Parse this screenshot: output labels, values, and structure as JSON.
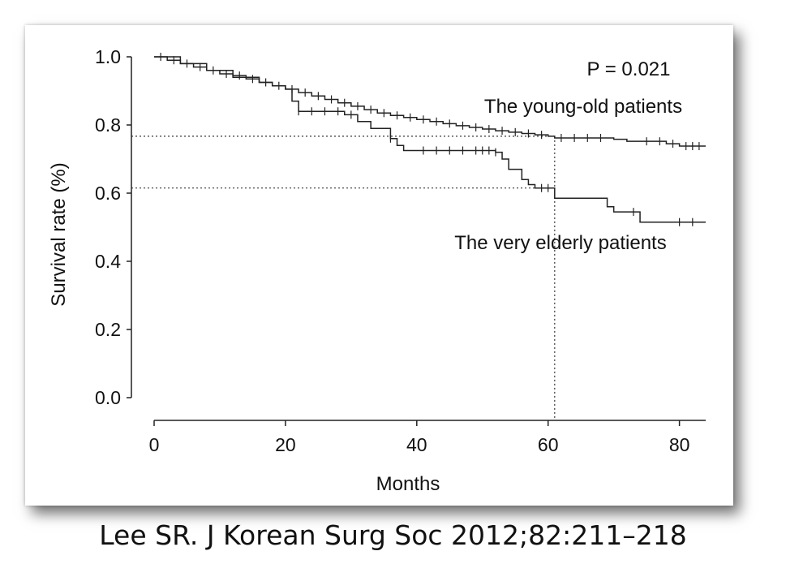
{
  "chart_data": {
    "type": "line",
    "subtype": "kaplan-meier",
    "xlabel": "Months",
    "ylabel": "Survival rate (%)",
    "xlim": [
      0,
      84
    ],
    "ylim": [
      0,
      1.0
    ],
    "x_ticks": [
      0,
      20,
      40,
      60,
      80
    ],
    "x_tick_labels": [
      "0",
      "20",
      "40",
      "60",
      "80"
    ],
    "y_ticks": [
      0.0,
      0.2,
      0.4,
      0.6,
      0.8,
      1.0
    ],
    "y_tick_labels": [
      "0.0",
      "0.2",
      "0.4",
      "0.6",
      "0.8",
      "1.0"
    ],
    "grid": false,
    "annotation_pvalue": "P = 0.021",
    "series": [
      {
        "name": "The young-old patients",
        "points": [
          [
            0,
            1.0
          ],
          [
            2,
            0.99
          ],
          [
            4,
            0.98
          ],
          [
            6,
            0.97
          ],
          [
            8,
            0.96
          ],
          [
            10,
            0.95
          ],
          [
            12,
            0.945
          ],
          [
            14,
            0.935
          ],
          [
            16,
            0.925
          ],
          [
            18,
            0.915
          ],
          [
            20,
            0.905
          ],
          [
            22,
            0.895
          ],
          [
            24,
            0.885
          ],
          [
            26,
            0.875
          ],
          [
            28,
            0.865
          ],
          [
            30,
            0.855
          ],
          [
            32,
            0.845
          ],
          [
            34,
            0.835
          ],
          [
            36,
            0.828
          ],
          [
            38,
            0.822
          ],
          [
            40,
            0.816
          ],
          [
            42,
            0.81
          ],
          [
            44,
            0.804
          ],
          [
            46,
            0.798
          ],
          [
            48,
            0.793
          ],
          [
            50,
            0.788
          ],
          [
            52,
            0.783
          ],
          [
            54,
            0.779
          ],
          [
            56,
            0.775
          ],
          [
            58,
            0.771
          ],
          [
            60,
            0.767
          ],
          [
            61,
            0.762
          ],
          [
            70,
            0.758
          ],
          [
            72,
            0.752
          ],
          [
            78,
            0.745
          ],
          [
            80,
            0.738
          ],
          [
            84,
            0.738
          ]
        ],
        "censor_x": [
          1,
          3,
          5,
          7,
          9,
          11,
          13,
          15,
          17,
          19,
          21,
          23,
          25,
          27,
          29,
          31,
          33,
          35,
          37,
          39,
          41,
          43,
          45,
          47,
          49,
          51,
          53,
          55,
          57,
          59,
          62,
          64,
          66,
          68,
          75,
          77,
          79,
          81,
          82,
          83
        ]
      },
      {
        "name": "The very elderly patients",
        "points": [
          [
            0,
            1.0
          ],
          [
            4,
            0.98
          ],
          [
            8,
            0.96
          ],
          [
            12,
            0.94
          ],
          [
            16,
            0.925
          ],
          [
            18,
            0.915
          ],
          [
            20,
            0.905
          ],
          [
            21,
            0.87
          ],
          [
            22,
            0.84
          ],
          [
            29,
            0.83
          ],
          [
            31,
            0.81
          ],
          [
            33,
            0.79
          ],
          [
            36,
            0.76
          ],
          [
            37,
            0.74
          ],
          [
            38,
            0.725
          ],
          [
            52,
            0.72
          ],
          [
            53,
            0.7
          ],
          [
            54,
            0.67
          ],
          [
            56,
            0.64
          ],
          [
            57,
            0.625
          ],
          [
            58,
            0.615
          ],
          [
            61,
            0.585
          ],
          [
            69,
            0.56
          ],
          [
            70,
            0.545
          ],
          [
            74,
            0.515
          ],
          [
            84,
            0.515
          ]
        ],
        "censor_x": [
          22,
          24,
          26,
          28,
          30,
          36,
          41,
          43,
          45,
          47,
          49,
          50,
          51,
          52,
          59,
          60,
          73,
          80,
          82
        ]
      }
    ],
    "reference_lines": [
      {
        "y": 0.767,
        "x_end": 61
      },
      {
        "y": 0.615,
        "x_end": 61
      },
      {
        "x": 61,
        "y_end": 0.767
      }
    ],
    "source": "Lee SR. J Korean Surg Soc 2012;82:211–218"
  }
}
